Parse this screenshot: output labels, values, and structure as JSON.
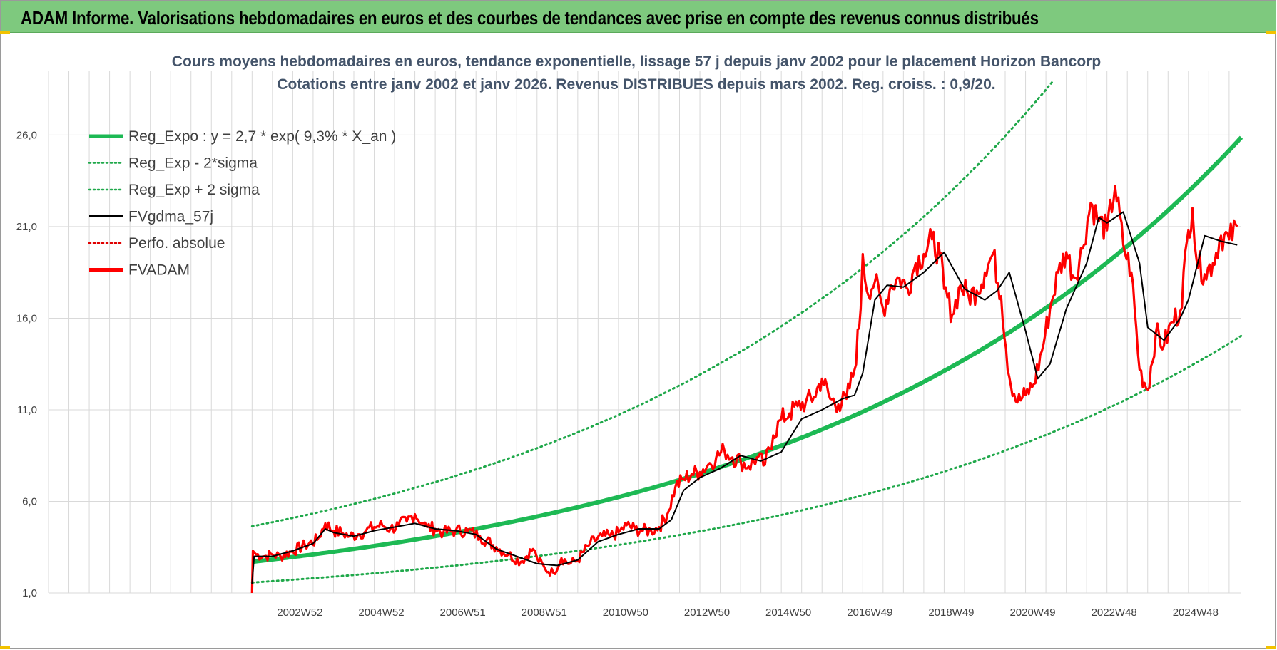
{
  "banner": {
    "title": "ADAM Informe. Valorisations hebdomadaires en euros et des courbes de tendances avec prise en compte des revenus connus distribués"
  },
  "chart_data": {
    "type": "line",
    "title": "Cours moyens hebdomadaires en euros, tendance exponentielle, lissage 57 j depuis janv 2002  pour le placement Horizon Bancorp",
    "subtitle": "Cotations entre janv 2002 et janv 2026. Revenus DISTRIBUES depuis mars 2002.  Reg. croiss. : 0,9/20.",
    "xlabel": "",
    "ylabel": "",
    "ylim": [
      1.0,
      28.0
    ],
    "xlim": [
      -5.0,
      24.3
    ],
    "y_ticks": [
      "1,0",
      "6,0",
      "11,0",
      "16,0",
      "21,0",
      "26,0"
    ],
    "y_tick_values": [
      1,
      6,
      11,
      16,
      21,
      26
    ],
    "x_ticks": [
      "2002W52",
      "2004W52",
      "2006W51",
      "2008W51",
      "2010W50",
      "2012W50",
      "2014W50",
      "2016W49",
      "2018W49",
      "2020W49",
      "2022W48",
      "2024W48"
    ],
    "x_tick_values": [
      1.0,
      3.0,
      5.0,
      7.0,
      9.0,
      11.0,
      13.0,
      15.0,
      17.0,
      19.0,
      21.0,
      23.0
    ],
    "grid": true,
    "legend_position": "top-left",
    "regression": {
      "a": 2.7,
      "rate": 0.093,
      "sigma_factor": 1.72
    },
    "colors": {
      "reg_expo": "#1db954",
      "reg_band": "#1fa84a",
      "fvgdma": "#000000",
      "perfo": "#e00000",
      "fvadam": "#ff0000",
      "grid": "#d9d9d9"
    },
    "legend": [
      {
        "label": "Reg_Expo : y = 2,7 * exp( 9,3% *  X_an )",
        "style": "solid-thick",
        "color": "#1db954"
      },
      {
        "label": "Reg_Exp - 2*sigma",
        "style": "dotted",
        "color": "#1fa84a"
      },
      {
        "label": "Reg_Exp + 2 sigma",
        "style": "dotted",
        "color": "#1fa84a"
      },
      {
        "label": "FVgdma_57j",
        "style": "solid",
        "color": "#000000"
      },
      {
        "label": "Perfo. absolue",
        "style": "dotted",
        "color": "#e00000"
      },
      {
        "label": "FVADAM",
        "style": "solid-thick",
        "color": "#ff0000"
      }
    ],
    "series": [
      {
        "name": "FVADAM",
        "x": [
          0.0,
          0.02,
          0.1,
          0.3,
          0.5,
          0.7,
          1.0,
          1.3,
          1.6,
          1.8,
          2.0,
          2.2,
          2.4,
          2.6,
          2.8,
          3.0,
          3.2,
          3.4,
          3.6,
          3.8,
          4.0,
          4.2,
          4.3,
          4.5,
          4.7,
          5.0,
          5.3,
          5.6,
          6.0,
          6.3,
          6.6,
          6.9,
          7.0,
          7.2,
          7.4,
          7.6,
          7.8,
          8.0,
          8.3,
          8.6,
          8.8,
          9.0,
          9.2,
          9.4,
          9.6,
          9.8,
          10.0,
          10.2,
          10.4,
          10.6,
          10.8,
          11.0,
          11.2,
          11.4,
          11.6,
          11.8,
          12.0,
          12.2,
          12.4,
          12.6,
          12.8,
          13.0,
          13.2,
          13.4,
          13.6,
          13.8,
          14.0,
          14.2,
          14.4,
          14.6,
          14.8,
          14.95,
          15.0,
          15.1,
          15.3,
          15.5,
          15.7,
          15.9,
          16.1,
          16.3,
          16.5,
          16.7,
          16.9,
          17.0,
          17.2,
          17.4,
          17.6,
          17.8,
          18.0,
          18.2,
          18.4,
          18.6,
          18.8,
          19.0,
          19.2,
          19.4,
          19.6,
          19.8,
          20.0,
          20.2,
          20.4,
          20.6,
          20.8,
          21.0,
          21.2,
          21.4,
          21.6,
          21.8,
          22.0,
          22.2,
          22.4,
          22.6,
          22.8,
          23.0,
          23.1,
          23.2,
          23.4,
          23.6,
          23.8,
          24.0,
          24.2
        ],
        "values": [
          1.0,
          3.3,
          3.1,
          3.0,
          3.1,
          3.0,
          3.3,
          3.6,
          3.9,
          4.8,
          4.4,
          4.3,
          4.1,
          4.2,
          4.4,
          4.6,
          4.7,
          4.5,
          4.7,
          4.9,
          5.3,
          4.8,
          4.6,
          4.5,
          4.3,
          4.4,
          4.4,
          4.1,
          3.5,
          3.1,
          2.7,
          3.4,
          2.9,
          2.3,
          2.1,
          2.9,
          2.6,
          2.8,
          3.7,
          4.1,
          4.1,
          4.3,
          4.7,
          4.5,
          4.4,
          4.4,
          4.6,
          5.3,
          6.8,
          7.2,
          7.5,
          7.6,
          8.0,
          8.4,
          8.8,
          8.4,
          8.2,
          7.9,
          8.4,
          8.0,
          9.6,
          10.5,
          10.8,
          11.2,
          11.4,
          11.7,
          12.7,
          11.6,
          11.3,
          11.6,
          13.2,
          16.5,
          19.5,
          17.5,
          18.0,
          16.5,
          17.8,
          18.2,
          17.6,
          19.0,
          19.5,
          20.3,
          19.4,
          17.6,
          16.2,
          17.8,
          17.2,
          17.5,
          18.5,
          19.5,
          17.2,
          12.8,
          11.4,
          11.8,
          12.4,
          14.2,
          16.5,
          18.5,
          19.6,
          18.2,
          19.8,
          22.3,
          21.3,
          20.8,
          23.2,
          20.0,
          18.5,
          13.2,
          12.1,
          15.2,
          14.5,
          15.8,
          16.4,
          20.8,
          22.0,
          19.2,
          18.4,
          19.0,
          20.5,
          20.3,
          21.0
        ]
      },
      {
        "name": "FVgdma_57j",
        "x": [
          0.0,
          0.05,
          0.5,
          1.0,
          1.5,
          1.8,
          2.0,
          2.5,
          3.0,
          3.5,
          4.0,
          4.5,
          5.0,
          5.5,
          6.0,
          6.5,
          7.0,
          7.5,
          8.0,
          8.5,
          9.0,
          9.5,
          10.0,
          10.3,
          10.6,
          11.0,
          11.5,
          12.0,
          12.5,
          13.0,
          13.5,
          14.0,
          14.5,
          14.8,
          15.0,
          15.3,
          15.6,
          16.0,
          16.5,
          17.0,
          17.5,
          18.0,
          18.3,
          18.6,
          19.0,
          19.3,
          19.6,
          20.0,
          20.5,
          20.8,
          21.0,
          21.4,
          21.8,
          22.0,
          22.4,
          22.8,
          23.0,
          23.4,
          23.8,
          24.2
        ],
        "values": [
          1.5,
          3.0,
          3.0,
          3.3,
          3.7,
          4.5,
          4.3,
          4.1,
          4.4,
          4.6,
          4.8,
          4.5,
          4.4,
          4.2,
          3.4,
          3.0,
          2.6,
          2.5,
          2.8,
          3.8,
          4.2,
          4.5,
          4.5,
          5.0,
          6.6,
          7.3,
          7.8,
          8.5,
          8.2,
          8.7,
          10.5,
          11.0,
          11.6,
          11.8,
          13.0,
          17.0,
          17.8,
          17.7,
          18.5,
          19.6,
          17.6,
          17.0,
          17.5,
          18.5,
          15.3,
          12.7,
          13.5,
          16.5,
          19.0,
          21.5,
          21.2,
          21.8,
          19.0,
          15.5,
          14.8,
          16.0,
          17.0,
          20.5,
          20.2,
          20.0
        ]
      }
    ]
  }
}
